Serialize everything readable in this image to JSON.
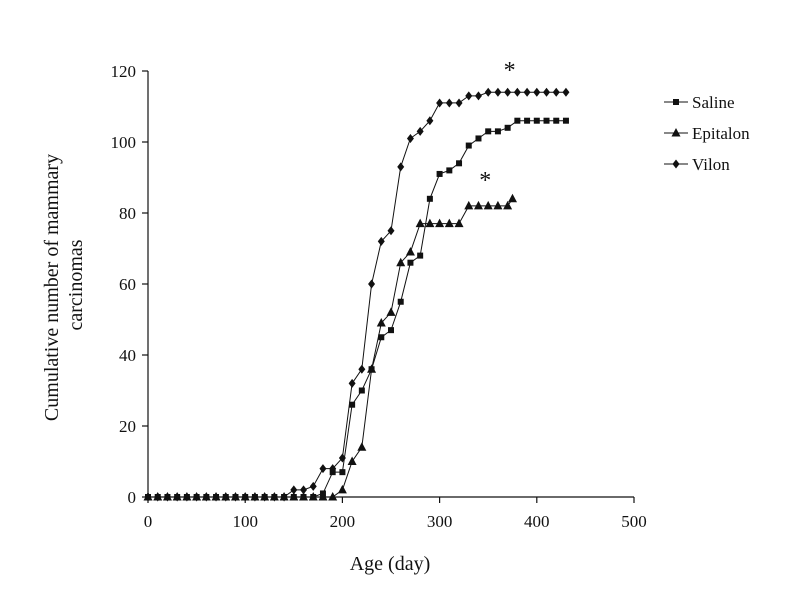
{
  "chart_data": {
    "type": "line",
    "title": "",
    "xlabel": "Age (day)",
    "ylabel": [
      "Cumulative number of mammary",
      "carcinomas"
    ],
    "xlim": [
      0,
      500
    ],
    "ylim": [
      0,
      120
    ],
    "xticks": [
      0,
      100,
      200,
      300,
      400,
      500
    ],
    "yticks": [
      0,
      20,
      40,
      60,
      80,
      100,
      120
    ],
    "grid": false,
    "legend_position": "top-right",
    "series": [
      {
        "name": "Saline",
        "marker": "square",
        "x": [
          0,
          10,
          20,
          30,
          40,
          50,
          60,
          70,
          80,
          90,
          100,
          110,
          120,
          130,
          140,
          150,
          160,
          170,
          180,
          190,
          200,
          210,
          220,
          230,
          240,
          250,
          260,
          270,
          280,
          290,
          300,
          310,
          320,
          330,
          340,
          350,
          360,
          370,
          380,
          390,
          400,
          410,
          420,
          430
        ],
        "y": [
          0,
          0,
          0,
          0,
          0,
          0,
          0,
          0,
          0,
          0,
          0,
          0,
          0,
          0,
          0,
          0,
          0,
          0,
          1,
          7,
          7,
          26,
          30,
          36,
          45,
          47,
          55,
          66,
          68,
          84,
          91,
          92,
          94,
          99,
          101,
          103,
          103,
          104,
          106,
          106,
          106,
          106,
          106,
          106
        ]
      },
      {
        "name": "Epitalon",
        "marker": "triangle",
        "x": [
          0,
          10,
          20,
          30,
          40,
          50,
          60,
          70,
          80,
          90,
          100,
          110,
          120,
          130,
          140,
          150,
          160,
          170,
          180,
          190,
          200,
          210,
          220,
          230,
          240,
          250,
          260,
          270,
          280,
          290,
          300,
          310,
          320,
          330,
          340,
          350,
          360,
          370,
          375
        ],
        "y": [
          0,
          0,
          0,
          0,
          0,
          0,
          0,
          0,
          0,
          0,
          0,
          0,
          0,
          0,
          0,
          0,
          0,
          0,
          0,
          0,
          2,
          10,
          14,
          36,
          49,
          52,
          66,
          69,
          77,
          77,
          77,
          77,
          77,
          82,
          82,
          82,
          82,
          82,
          84
        ]
      },
      {
        "name": "Vilon",
        "marker": "diamond",
        "x": [
          0,
          10,
          20,
          30,
          40,
          50,
          60,
          70,
          80,
          90,
          100,
          110,
          120,
          130,
          140,
          150,
          160,
          170,
          180,
          190,
          200,
          210,
          220,
          230,
          240,
          250,
          260,
          270,
          280,
          290,
          300,
          310,
          320,
          330,
          340,
          350,
          360,
          370,
          380,
          390,
          400,
          410,
          420,
          430
        ],
        "y": [
          0,
          0,
          0,
          0,
          0,
          0,
          0,
          0,
          0,
          0,
          0,
          0,
          0,
          0,
          0,
          2,
          2,
          3,
          8,
          8,
          11,
          32,
          36,
          60,
          72,
          75,
          93,
          101,
          103,
          106,
          111,
          111,
          111,
          113,
          113,
          114,
          114,
          114,
          114,
          114,
          114,
          114,
          114,
          114
        ]
      }
    ],
    "annotations": [
      {
        "text": "*",
        "x": 372,
        "y": 118
      },
      {
        "text": "*",
        "x": 347,
        "y": 87
      }
    ]
  }
}
